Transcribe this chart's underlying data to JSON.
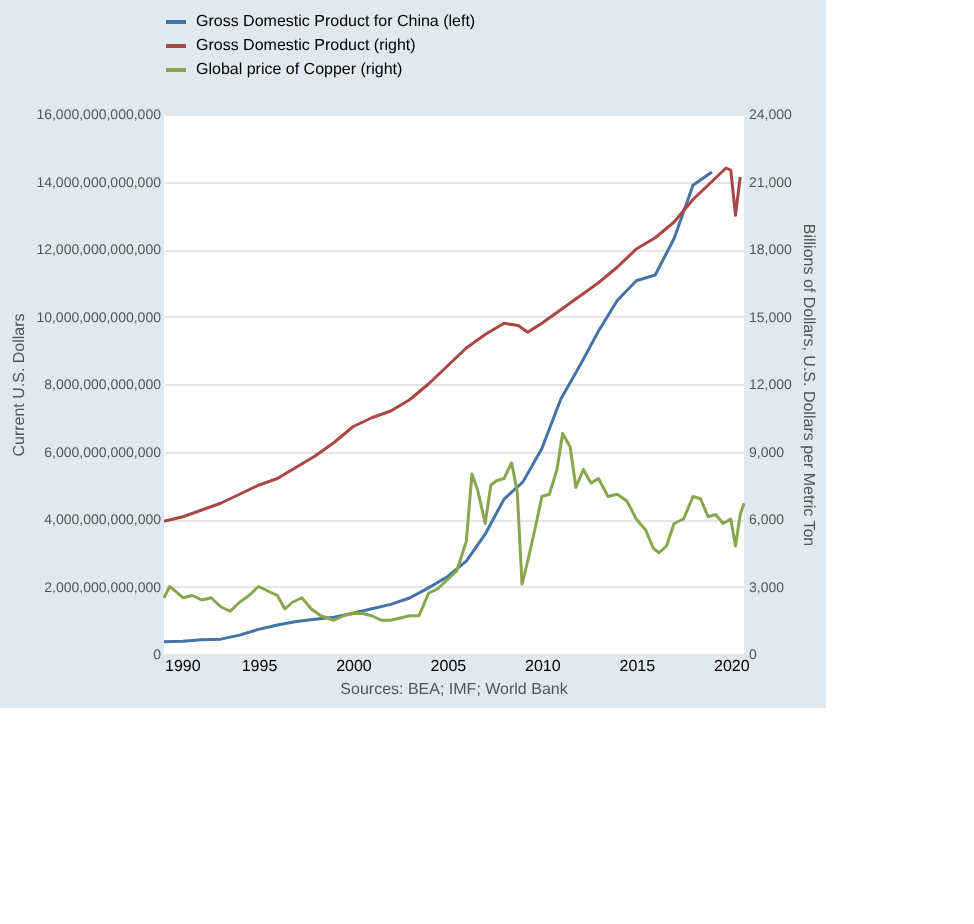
{
  "chart_data": {
    "type": "line",
    "ylabel": "Current U.S. Dollars",
    "y2label": "Billions of Dollars, U.S. Dollars per Metric Ton",
    "annotations": [
      "Sources: BEA; IMF; World Bank"
    ],
    "xlim": [
      1990,
      2020.7
    ],
    "xticks": [
      1990,
      1995,
      2000,
      2005,
      2010,
      2015,
      2020
    ],
    "ylim": [
      0,
      16000000000000
    ],
    "yticks": [
      0,
      {
        "value": 2000000000000,
        "label": "2,000,000,000,000"
      },
      {
        "value": 4000000000000,
        "label": "4,000,000,000,000"
      },
      {
        "value": 6000000000000,
        "label": "6,000,000,000,000"
      },
      {
        "value": 8000000000000,
        "label": "8,000,000,000,000"
      },
      {
        "value": 10000000000000,
        "label": "10,000,000,000,000"
      },
      {
        "value": 12000000000000,
        "label": "12,000,000,000,000"
      },
      {
        "value": 14000000000000,
        "label": "14,000,000,000,000"
      },
      {
        "value": 16000000000000,
        "label": "16,000,000,000,000"
      }
    ],
    "y2lim": [
      0,
      24000
    ],
    "y2ticks": [
      0,
      {
        "value": 3000,
        "label": "3,000"
      },
      {
        "value": 6000,
        "label": "6,000"
      },
      {
        "value": 9000,
        "label": "9,000"
      },
      {
        "value": 12000,
        "label": "12,000"
      },
      {
        "value": 15000,
        "label": "15,000"
      },
      {
        "value": 18000,
        "label": "18,000"
      },
      {
        "value": 21000,
        "label": "21,000"
      },
      {
        "value": 24000,
        "label": "24,000"
      }
    ],
    "grid": "y",
    "legend": "top left",
    "series": [
      {
        "name": "Gross Domestic Product for China (left)",
        "color": "#4572a7",
        "axis": "y",
        "x": [
          1990,
          1991,
          1992,
          1993,
          1994,
          1995,
          1996,
          1997,
          1998,
          1999,
          2000,
          2001,
          2002,
          2003,
          2004,
          2005,
          2006,
          2007,
          2008,
          2009,
          2010,
          2011,
          2012,
          2013,
          2014,
          2015,
          2016,
          2017,
          2018,
          2019
        ],
        "values": [
          360000000000,
          380000000000,
          420000000000,
          440000000000,
          560000000000,
          730000000000,
          860000000000,
          960000000000,
          1030000000000,
          1090000000000,
          1210000000000,
          1340000000000,
          1470000000000,
          1660000000000,
          1960000000000,
          2290000000000,
          2750000000000,
          3550000000000,
          4590000000000,
          5100000000000,
          6090000000000,
          7550000000000,
          8530000000000,
          9570000000000,
          10480000000000,
          11060000000000,
          11230000000000,
          12310000000000,
          13890000000000,
          14280000000000
        ]
      },
      {
        "name": "Gross Domestic Product (right)",
        "color": "#aa4643",
        "axis": "y2",
        "x": [
          1990,
          1991,
          1992,
          1993,
          1994,
          1995,
          1996,
          1997,
          1998,
          1999,
          2000,
          2001,
          2002,
          2003,
          2004,
          2005,
          2006,
          2007,
          2008,
          2008.75,
          2009.25,
          2010,
          2011,
          2012,
          2013,
          2014,
          2015,
          2016,
          2017,
          2018,
          2019,
          2019.75,
          2020,
          2020.25,
          2020.5
        ],
        "values": [
          5900,
          6100,
          6400,
          6700,
          7100,
          7500,
          7800,
          8300,
          8800,
          9400,
          10100,
          10500,
          10800,
          11300,
          12000,
          12800,
          13600,
          14200,
          14700,
          14600,
          14300,
          14700,
          15300,
          15900,
          16500,
          17200,
          18000,
          18500,
          19200,
          20200,
          21000,
          21600,
          21500,
          19500,
          21200
        ]
      },
      {
        "name": "Global price of Copper (right)",
        "color": "#89a54e",
        "axis": "y2",
        "x": [
          1990,
          1990.3,
          1990.6,
          1991,
          1991.5,
          1992,
          1992.5,
          1993,
          1993.5,
          1994,
          1994.5,
          1995,
          1995.5,
          1996,
          1996.4,
          1996.8,
          1997.3,
          1997.8,
          1998.3,
          1999,
          1999.5,
          2000,
          2000.5,
          2001,
          2001.5,
          2002,
          2002.5,
          2003,
          2003.5,
          2004,
          2004.5,
          2005,
          2005.5,
          2006,
          2006.3,
          2006.6,
          2007,
          2007.3,
          2007.6,
          2008,
          2008.4,
          2008.7,
          2008.95,
          2009.3,
          2009.7,
          2010,
          2010.4,
          2010.8,
          2011.1,
          2011.5,
          2011.8,
          2012.2,
          2012.6,
          2013,
          2013.5,
          2014,
          2014.5,
          2015,
          2015.5,
          2015.9,
          2016.2,
          2016.6,
          2017,
          2017.5,
          2018,
          2018.4,
          2018.8,
          2019.2,
          2019.6,
          2020,
          2020.25,
          2020.5,
          2020.7
        ],
        "values": [
          2500,
          3000,
          2800,
          2500,
          2600,
          2400,
          2500,
          2100,
          1900,
          2300,
          2600,
          3000,
          2800,
          2600,
          2000,
          2300,
          2500,
          2000,
          1700,
          1500,
          1700,
          1800,
          1800,
          1700,
          1500,
          1500,
          1600,
          1700,
          1700,
          2700,
          2900,
          3300,
          3700,
          5000,
          8000,
          7300,
          5800,
          7500,
          7700,
          7800,
          8500,
          7200,
          3100,
          4300,
          5800,
          7000,
          7100,
          8200,
          9800,
          9200,
          7400,
          8200,
          7600,
          7800,
          7000,
          7100,
          6800,
          6000,
          5500,
          4700,
          4500,
          4800,
          5800,
          6000,
          7000,
          6900,
          6100,
          6200,
          5800,
          6000,
          4800,
          6200,
          6700
        ]
      }
    ]
  }
}
